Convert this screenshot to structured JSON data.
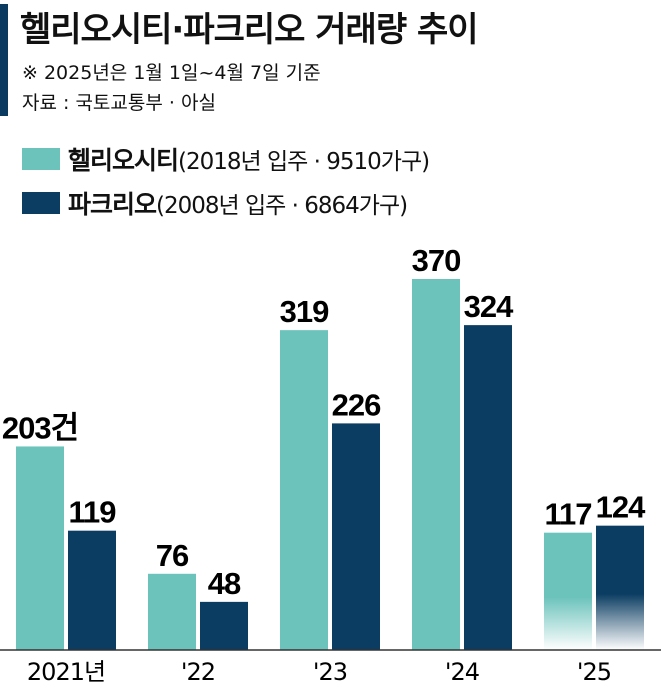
{
  "header": {
    "title": "헬리오시티·파크리오 거래량 추이",
    "note": "※ 2025년은 1월 1일~4월 7일 기준",
    "source": "자료 : 국토교통부 · 아실"
  },
  "legend": [
    {
      "name": "헬리오시티",
      "detail": "(2018년 입주 · 9510가구)"
    },
    {
      "name": "파크리오",
      "detail": "(2008년 입주 · 6864가구)"
    }
  ],
  "colors": {
    "heliocity": "#6cc3bc",
    "parkrio": "#0b3d62",
    "accent": "#0a3a5f"
  },
  "chart_data": {
    "type": "bar",
    "categories": [
      "2021년",
      "'22",
      "'23",
      "'24",
      "'25"
    ],
    "series": [
      {
        "name": "헬리오시티",
        "values": [
          203,
          76,
          319,
          370,
          117
        ]
      },
      {
        "name": "파크리오",
        "values": [
          119,
          48,
          226,
          324,
          124
        ]
      }
    ],
    "value_labels": [
      [
        "203건",
        "76",
        "319",
        "370",
        "117"
      ],
      [
        "119",
        "48",
        "226",
        "324",
        "124"
      ]
    ],
    "ylim": [
      0,
      370
    ],
    "faded_category": "'25"
  }
}
